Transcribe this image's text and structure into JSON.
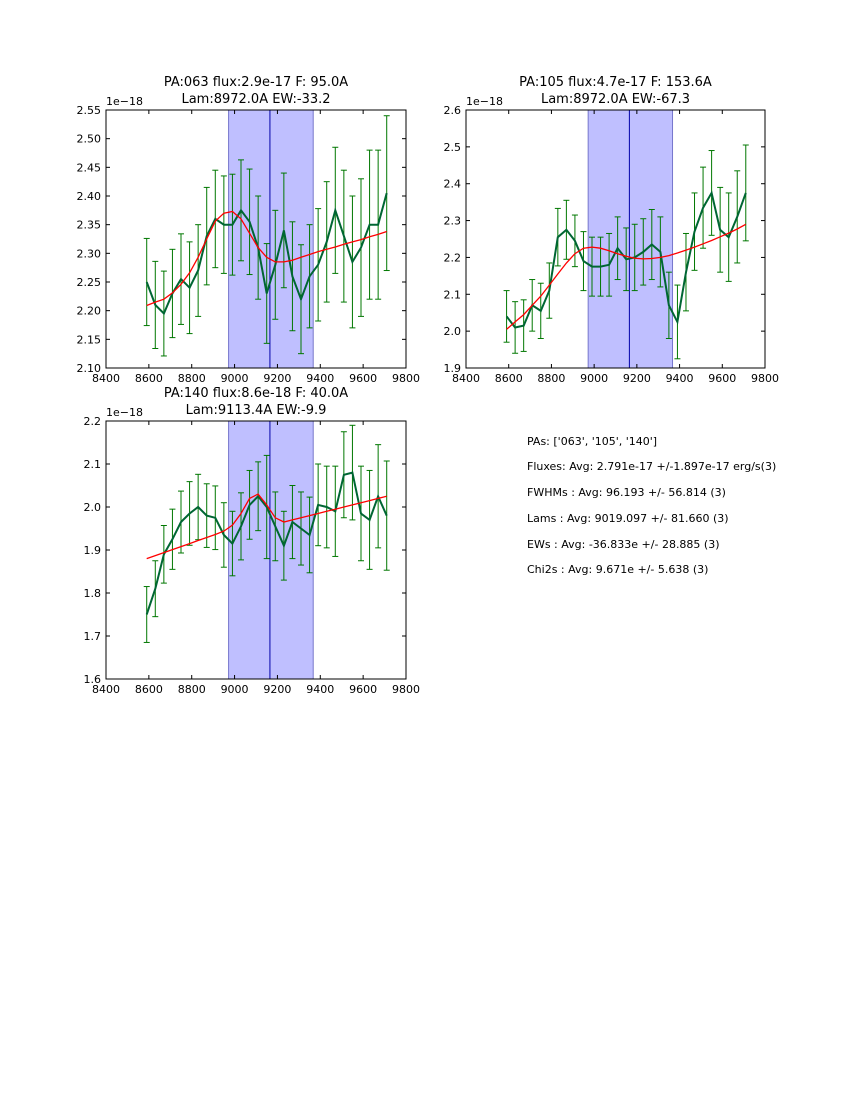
{
  "figure": {
    "summary_lines": [
      "PAs: ['063', '105', '140']",
      "Fluxes: Avg: 2.791e-17 +/-1.897e-17 erg/s(3)",
      "FWHMs : Avg:   96.193 +/-  56.814 (3)",
      "Lams  : Avg: 9019.097 +/-  81.660 (3)",
      "EWs   : Avg:  -36.833e +/-  28.885 (3)",
      "Chi2s   : Avg:    9.671e +/-   5.638 (3)"
    ]
  },
  "colors": {
    "data_line": "#006633",
    "errorbar": "#007700",
    "fit": "#ff0000",
    "band_fill": "#bfbfff",
    "band_edge": "#7777cc",
    "center_line": "#0000aa"
  },
  "chart_data": [
    {
      "type": "line",
      "title": "PA:063 flux:2.9e-17 F: 95.0A",
      "subtitle": "Lam:8972.0A EW:-33.2",
      "offset_label": "1e−18",
      "xlim": [
        8400,
        9800
      ],
      "ylim": [
        2.1,
        2.55
      ],
      "xticks": [
        8400,
        8600,
        8800,
        9000,
        9200,
        9400,
        9600,
        9800
      ],
      "xtick_labels": [
        "8400",
        "8600",
        "8800",
        "9000",
        "9200",
        "9400",
        "9600",
        "9800"
      ],
      "yticks": [
        2.1,
        2.15,
        2.2,
        2.25,
        2.3,
        2.35,
        2.4,
        2.45,
        2.5,
        2.55
      ],
      "ytick_labels": [
        "2.10",
        "2.15",
        "2.20",
        "2.25",
        "2.30",
        "2.35",
        "2.40",
        "2.45",
        "2.50",
        "2.55"
      ],
      "band": [
        8972,
        9367
      ],
      "center_line": 9165,
      "x": [
        8590,
        8630,
        8670,
        8710,
        8750,
        8790,
        8830,
        8870,
        8910,
        8950,
        8990,
        9030,
        9070,
        9110,
        9150,
        9190,
        9230,
        9270,
        9310,
        9350,
        9390,
        9430,
        9470,
        9510,
        9550,
        9590,
        9630,
        9670,
        9710
      ],
      "y": [
        2.25,
        2.21,
        2.195,
        2.23,
        2.255,
        2.24,
        2.27,
        2.33,
        2.36,
        2.35,
        2.35,
        2.375,
        2.355,
        2.31,
        2.23,
        2.28,
        2.34,
        2.26,
        2.22,
        2.26,
        2.28,
        2.32,
        2.375,
        2.33,
        2.285,
        2.31,
        2.35,
        2.35,
        2.405
      ],
      "yerr": [
        0.076,
        0.076,
        0.074,
        0.077,
        0.079,
        0.08,
        0.08,
        0.085,
        0.085,
        0.085,
        0.088,
        0.088,
        0.092,
        0.09,
        0.087,
        0.095,
        0.1,
        0.095,
        0.095,
        0.09,
        0.098,
        0.105,
        0.11,
        0.115,
        0.115,
        0.12,
        0.13,
        0.13,
        0.135
      ],
      "fit": [
        2.209,
        2.215,
        2.22,
        2.231,
        2.246,
        2.266,
        2.293,
        2.325,
        2.356,
        2.37,
        2.373,
        2.36,
        2.335,
        2.31,
        2.293,
        2.285,
        2.285,
        2.288,
        2.293,
        2.298,
        2.303,
        2.307,
        2.311,
        2.316,
        2.32,
        2.324,
        2.329,
        2.333,
        2.338
      ]
    },
    {
      "type": "line",
      "title": "PA:105 flux:4.7e-17 F: 153.6A",
      "subtitle": "Lam:8972.0A EW:-67.3",
      "offset_label": "1e−18",
      "xlim": [
        8400,
        9800
      ],
      "ylim": [
        1.9,
        2.6
      ],
      "xticks": [
        8400,
        8600,
        8800,
        9000,
        9200,
        9400,
        9600,
        9800
      ],
      "xtick_labels": [
        "8400",
        "8600",
        "8800",
        "9000",
        "9200",
        "9400",
        "9600",
        "9800"
      ],
      "yticks": [
        1.9,
        2.0,
        2.1,
        2.2,
        2.3,
        2.4,
        2.5,
        2.6
      ],
      "ytick_labels": [
        "1.9",
        "2.0",
        "2.1",
        "2.2",
        "2.3",
        "2.4",
        "2.5",
        "2.6"
      ],
      "band": [
        8972,
        9367
      ],
      "center_line": 9165,
      "x": [
        8590,
        8630,
        8670,
        8710,
        8750,
        8790,
        8830,
        8870,
        8910,
        8950,
        8990,
        9030,
        9070,
        9110,
        9150,
        9190,
        9230,
        9270,
        9310,
        9350,
        9390,
        9430,
        9470,
        9510,
        9550,
        9590,
        9630,
        9670,
        9710
      ],
      "y": [
        2.04,
        2.01,
        2.015,
        2.07,
        2.055,
        2.11,
        2.255,
        2.275,
        2.245,
        2.19,
        2.175,
        2.175,
        2.18,
        2.225,
        2.195,
        2.2,
        2.215,
        2.235,
        2.215,
        2.07,
        2.025,
        2.16,
        2.27,
        2.335,
        2.375,
        2.275,
        2.255,
        2.31,
        2.375
      ],
      "yerr": [
        0.07,
        0.07,
        0.07,
        0.07,
        0.075,
        0.075,
        0.078,
        0.08,
        0.07,
        0.08,
        0.08,
        0.08,
        0.085,
        0.085,
        0.085,
        0.09,
        0.09,
        0.095,
        0.095,
        0.09,
        0.1,
        0.105,
        0.105,
        0.11,
        0.115,
        0.115,
        0.12,
        0.125,
        0.13
      ],
      "fit": [
        2.005,
        2.025,
        2.045,
        2.07,
        2.095,
        2.125,
        2.155,
        2.185,
        2.21,
        2.225,
        2.228,
        2.225,
        2.218,
        2.21,
        2.203,
        2.198,
        2.196,
        2.197,
        2.2,
        2.205,
        2.212,
        2.22,
        2.228,
        2.237,
        2.246,
        2.256,
        2.266,
        2.277,
        2.29
      ]
    },
    {
      "type": "line",
      "title": "PA:140 flux:8.6e-18 F: 40.0A",
      "subtitle": "Lam:9113.4A EW:-9.9",
      "offset_label": "1e−18",
      "xlim": [
        8400,
        9800
      ],
      "ylim": [
        1.6,
        2.2
      ],
      "xticks": [
        8400,
        8600,
        8800,
        9000,
        9200,
        9400,
        9600,
        9800
      ],
      "xtick_labels": [
        "8400",
        "8600",
        "8800",
        "9000",
        "9200",
        "9400",
        "9600",
        "9800"
      ],
      "yticks": [
        1.6,
        1.7,
        1.8,
        1.9,
        2.0,
        2.1,
        2.2
      ],
      "ytick_labels": [
        "1.6",
        "1.7",
        "1.8",
        "1.9",
        "2.0",
        "2.1",
        "2.2"
      ],
      "band": [
        8972,
        9367
      ],
      "center_line": 9165,
      "x": [
        8590,
        8630,
        8670,
        8710,
        8750,
        8790,
        8830,
        8870,
        8910,
        8950,
        8990,
        9030,
        9070,
        9110,
        9150,
        9190,
        9230,
        9270,
        9310,
        9350,
        9390,
        9430,
        9470,
        9510,
        9550,
        9590,
        9630,
        9670,
        9710
      ],
      "y": [
        1.75,
        1.81,
        1.89,
        1.925,
        1.965,
        1.985,
        2.0,
        1.98,
        1.975,
        1.935,
        1.915,
        1.955,
        2.005,
        2.025,
        2.0,
        1.955,
        1.91,
        1.965,
        1.95,
        1.935,
        2.005,
        2.0,
        1.99,
        2.075,
        2.08,
        1.985,
        1.97,
        2.025,
        1.98
      ],
      "yerr": [
        0.065,
        0.065,
        0.067,
        0.07,
        0.072,
        0.074,
        0.076,
        0.074,
        0.074,
        0.075,
        0.075,
        0.078,
        0.08,
        0.08,
        0.12,
        0.08,
        0.08,
        0.085,
        0.085,
        0.088,
        0.095,
        0.095,
        0.105,
        0.1,
        0.11,
        0.11,
        0.115,
        0.12,
        0.127
      ],
      "fit": [
        1.88,
        1.887,
        1.894,
        1.901,
        1.908,
        1.915,
        1.922,
        1.929,
        1.936,
        1.944,
        1.958,
        1.985,
        2.02,
        2.03,
        2.005,
        1.975,
        1.965,
        1.97,
        1.975,
        1.98,
        1.985,
        1.99,
        1.995,
        2.0,
        2.005,
        2.01,
        2.015,
        2.02,
        2.025
      ]
    }
  ]
}
